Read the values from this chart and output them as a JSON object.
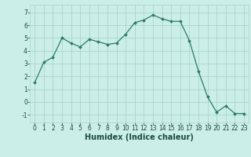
{
  "x": [
    0,
    1,
    2,
    3,
    4,
    5,
    6,
    7,
    8,
    9,
    10,
    11,
    12,
    13,
    14,
    15,
    16,
    17,
    18,
    19,
    20,
    21,
    22,
    23
  ],
  "y": [
    1.5,
    3.1,
    3.5,
    5.0,
    4.6,
    4.3,
    4.9,
    4.7,
    4.5,
    4.6,
    5.3,
    6.2,
    6.4,
    6.8,
    6.5,
    6.3,
    6.3,
    4.8,
    2.4,
    0.4,
    -0.8,
    -0.3,
    -0.9,
    -0.9
  ],
  "line_color": "#2a7a6a",
  "marker": "D",
  "marker_size": 2.0,
  "bg_color": "#cceee8",
  "grid_color": "#a8d5cc",
  "xlabel": "Humidex (Indice chaleur)",
  "xlim": [
    -0.5,
    23.5
  ],
  "ylim": [
    -1.6,
    7.6
  ],
  "yticks": [
    -1,
    0,
    1,
    2,
    3,
    4,
    5,
    6,
    7
  ],
  "xticks": [
    0,
    1,
    2,
    3,
    4,
    5,
    6,
    7,
    8,
    9,
    10,
    11,
    12,
    13,
    14,
    15,
    16,
    17,
    18,
    19,
    20,
    21,
    22,
    23
  ],
  "tick_fontsize": 5.5,
  "xlabel_fontsize": 7.0,
  "label_color": "#1a4a40"
}
